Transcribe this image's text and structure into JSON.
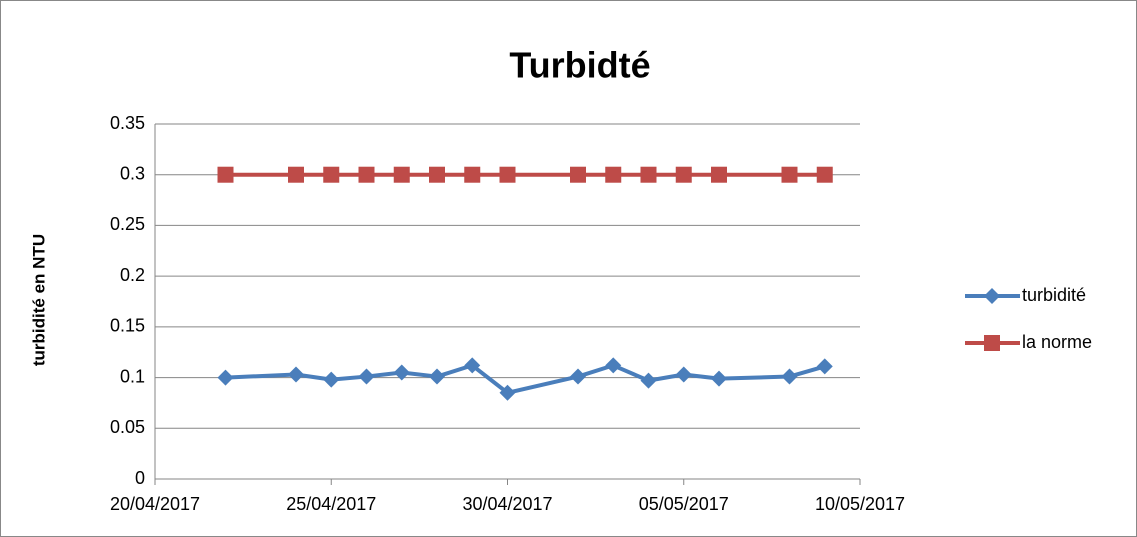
{
  "chart_data": {
    "type": "line",
    "title": "Turbidté",
    "y_label": "turbidité en NTU",
    "x": [
      "2017-04-22",
      "2017-04-24",
      "2017-04-25",
      "2017-04-26",
      "2017-04-27",
      "2017-04-28",
      "2017-04-29",
      "2017-04-30",
      "2017-05-02",
      "2017-05-03",
      "2017-05-04",
      "2017-05-05",
      "2017-05-06",
      "2017-05-08",
      "2017-05-09"
    ],
    "series": [
      {
        "name": "turbidité",
        "color": "#4a7ebb",
        "marker": "diamond",
        "values": [
          0.1,
          0.103,
          0.098,
          0.101,
          0.105,
          0.101,
          0.112,
          0.085,
          0.101,
          0.112,
          0.097,
          0.103,
          0.099,
          0.101,
          0.111
        ]
      },
      {
        "name": "la norme",
        "color": "#be4b48",
        "marker": "square",
        "values": [
          0.3,
          0.3,
          0.3,
          0.3,
          0.3,
          0.3,
          0.3,
          0.3,
          0.3,
          0.3,
          0.3,
          0.3,
          0.3,
          0.3,
          0.3
        ]
      }
    ],
    "xlim": [
      "2017-04-20",
      "2017-05-10"
    ],
    "xticks": [
      {
        "value": "2017-04-20",
        "label": "20/04/2017"
      },
      {
        "value": "2017-04-25",
        "label": "25/04/2017"
      },
      {
        "value": "2017-04-30",
        "label": "30/04/2017"
      },
      {
        "value": "2017-05-05",
        "label": "05/05/2017"
      },
      {
        "value": "2017-05-10",
        "label": "10/05/2017"
      }
    ],
    "ylim": [
      0,
      0.35
    ],
    "yticks": [
      0,
      0.05,
      0.1,
      0.15,
      0.2,
      0.25,
      0.3,
      0.35
    ],
    "grid": true,
    "legend": "right"
  }
}
